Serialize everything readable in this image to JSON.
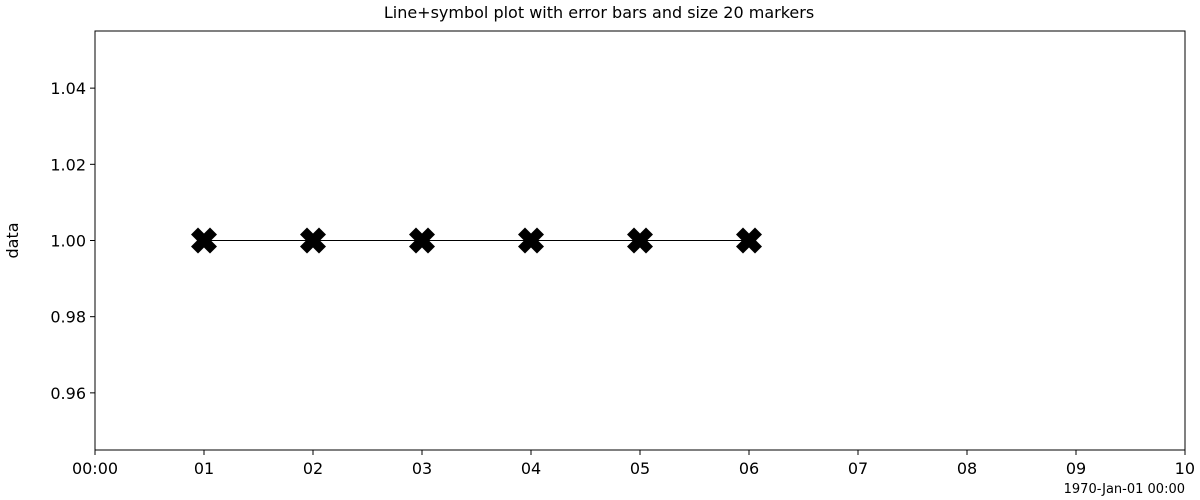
{
  "chart_data": {
    "type": "line",
    "title": "Line+symbol plot with error bars and size 20 markers",
    "xlabel": "",
    "ylabel": "data",
    "x_offset_label": "1970-Jan-01 00:00",
    "x_unit": "seconds since 1970-01-01 00:00",
    "xlim": [
      0,
      10
    ],
    "ylim": [
      0.945,
      1.055
    ],
    "x_ticks": [
      0,
      1,
      2,
      3,
      4,
      5,
      6,
      7,
      8,
      9,
      10
    ],
    "x_tick_labels": [
      "00:00",
      "01",
      "02",
      "03",
      "04",
      "05",
      "06",
      "07",
      "08",
      "09",
      "10"
    ],
    "y_ticks": [
      0.96,
      0.98,
      1.0,
      1.02,
      1.04
    ],
    "y_tick_labels": [
      "0.96",
      "0.98",
      "1.00",
      "1.02",
      "1.04"
    ],
    "grid": false,
    "series": [
      {
        "marker": "X",
        "marker_size": 20,
        "color": "#000000",
        "x": [
          1,
          2,
          3,
          4,
          5,
          6
        ],
        "values": [
          1.0,
          1.0,
          1.0,
          1.0,
          1.0,
          1.0
        ]
      }
    ]
  }
}
